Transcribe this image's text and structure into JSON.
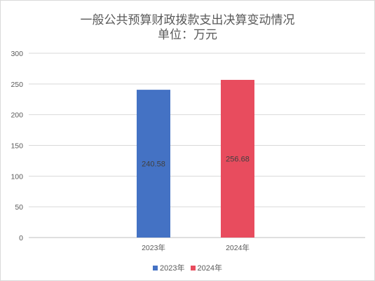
{
  "chart_data": {
    "type": "bar",
    "title": "一般公共预算财政拨款支出决算变动情况",
    "subtitle": "单位：万元",
    "categories": [
      "2023年",
      "2024年"
    ],
    "series": [
      {
        "name": "2023年",
        "color": "#4472C4",
        "values": [
          240.58,
          null
        ]
      },
      {
        "name": "2024年",
        "color": "#E84C5E",
        "values": [
          null,
          256.68
        ]
      }
    ],
    "data_labels": [
      "240.58",
      "256.68"
    ],
    "y_ticks": [
      "0",
      "50",
      "100",
      "150",
      "200",
      "250",
      "300"
    ],
    "ylim": [
      0,
      300
    ],
    "grid": true,
    "legend_position": "bottom"
  }
}
